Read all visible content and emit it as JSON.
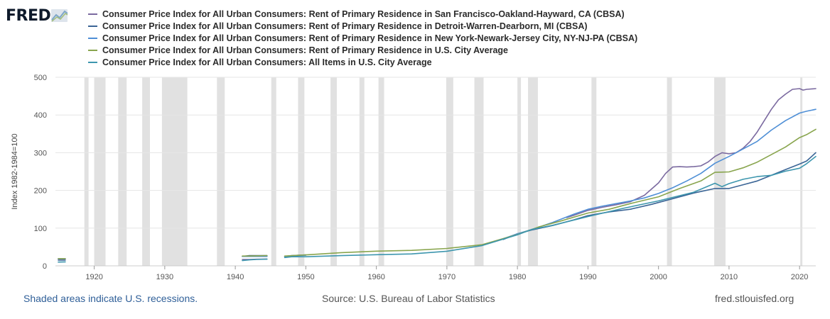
{
  "header": {
    "logo_text": "FRED",
    "logo_icon": "trend-line-icon"
  },
  "footer": {
    "note": "Shaded areas indicate U.S. recessions.",
    "source": "Source: U.S. Bureau of Labor Statistics",
    "url": "fred.stlouisfed.org"
  },
  "colors": {
    "recession": "#e1e1e1",
    "grid": "#e6e6e6"
  },
  "chart_data": {
    "type": "line",
    "title": "",
    "xlabel": "",
    "ylabel": "Index 1982-1984=100",
    "xlim": [
      1914.5,
      2022.3
    ],
    "ylim": [
      0,
      500
    ],
    "x_ticks": [
      1920,
      1930,
      1940,
      1950,
      1960,
      1970,
      1980,
      1990,
      2000,
      2010,
      2020
    ],
    "y_ticks": [
      0,
      100,
      200,
      300,
      400,
      500
    ],
    "grid": "horizontal",
    "legend": "top-left",
    "recessions": [
      [
        1918.6,
        1919.2
      ],
      [
        1920.0,
        1921.6
      ],
      [
        1923.4,
        1924.6
      ],
      [
        1926.8,
        1927.9
      ],
      [
        1929.6,
        1933.2
      ],
      [
        1937.4,
        1938.5
      ],
      [
        1945.1,
        1945.8
      ],
      [
        1948.9,
        1949.8
      ],
      [
        1953.5,
        1954.4
      ],
      [
        1957.6,
        1958.3
      ],
      [
        1960.3,
        1961.1
      ],
      [
        1969.9,
        1970.9
      ],
      [
        1973.9,
        1975.2
      ],
      [
        1980.0,
        1980.5
      ],
      [
        1981.5,
        1982.9
      ],
      [
        1990.5,
        1991.2
      ],
      [
        2001.2,
        2001.9
      ],
      [
        2007.9,
        2009.5
      ],
      [
        2020.1,
        2020.4
      ]
    ],
    "series": [
      {
        "name": "Consumer Price Index for All Urban Consumers: Rent of Primary Residence in San Francisco-Oakland-Hayward, CA (CBSA)",
        "color": "#7b6aa0",
        "segments": [
          [
            [
              1914.9,
              18
            ],
            [
              1915.9,
              18
            ]
          ],
          [
            [
              1941,
              17
            ],
            [
              1942,
              17
            ],
            [
              1943,
              17.5
            ],
            [
              1944.5,
              18
            ]
          ],
          [
            [
              1987,
              128
            ],
            [
              1988,
              134
            ],
            [
              1990,
              147
            ],
            [
              1992,
              155
            ],
            [
              1994,
              162
            ],
            [
              1996,
              170
            ],
            [
              1998,
              187
            ],
            [
              2000,
              220
            ],
            [
              2001,
              245
            ],
            [
              2002,
              262
            ],
            [
              2003,
              263
            ],
            [
              2004,
              262
            ],
            [
              2005,
              263
            ],
            [
              2006,
              265
            ],
            [
              2007,
              275
            ],
            [
              2008,
              290
            ],
            [
              2009,
              300
            ],
            [
              2010,
              297
            ],
            [
              2011,
              300
            ],
            [
              2012,
              312
            ],
            [
              2013,
              330
            ],
            [
              2014,
              355
            ],
            [
              2015,
              385
            ],
            [
              2016,
              415
            ],
            [
              2017,
              440
            ],
            [
              2018,
              455
            ],
            [
              2019,
              468
            ],
            [
              2020,
              470
            ],
            [
              2020.5,
              466
            ],
            [
              2021,
              468
            ],
            [
              2022.3,
              470
            ]
          ]
        ]
      },
      {
        "name": "Consumer Price Index for All Urban Consumers: Rent of Primary Residence in Detroit-Warren-Dearborn, MI (CBSA)",
        "color": "#3b6596",
        "segments": [
          [
            [
              1914.9,
              15
            ],
            [
              1915.9,
              15
            ]
          ],
          [
            [
              1941,
              25
            ],
            [
              1942,
              27
            ],
            [
              1943,
              27
            ],
            [
              1944.5,
              27
            ]
          ],
          [
            [
              1947,
              25
            ],
            [
              1948,
              27
            ],
            [
              1949,
              28
            ],
            [
              1950,
              29
            ]
          ],
          [
            [
              1978,
              70
            ],
            [
              1980,
              85
            ],
            [
              1982,
              95
            ],
            [
              1985,
              107
            ],
            [
              1988,
              122
            ],
            [
              1990,
              133
            ],
            [
              1993,
              143
            ],
            [
              1996,
              150
            ],
            [
              1999,
              163
            ],
            [
              2002,
              178
            ],
            [
              2005,
              193
            ],
            [
              2008,
              205
            ],
            [
              2010,
              205
            ],
            [
              2012,
              215
            ],
            [
              2014,
              225
            ],
            [
              2016,
              240
            ],
            [
              2018,
              255
            ],
            [
              2020,
              270
            ],
            [
              2021,
              278
            ],
            [
              2022.3,
              300
            ]
          ]
        ]
      },
      {
        "name": "Consumer Price Index for All Urban Consumers: Rent of Primary Residence in New York-Newark-Jersey City, NY-NJ-PA (CBSA)",
        "color": "#4f8fd6",
        "segments": [
          [
            [
              1914.9,
              19
            ],
            [
              1915.9,
              19
            ]
          ],
          [
            [
              1941,
              25
            ],
            [
              1942,
              25
            ],
            [
              1943,
              25
            ],
            [
              1944.5,
              25
            ]
          ],
          [
            [
              1947,
              24
            ],
            [
              1949,
              27
            ],
            [
              1950,
              28
            ]
          ],
          [
            [
              1978,
              72
            ],
            [
              1980,
              85
            ],
            [
              1982,
              96
            ],
            [
              1985,
              115
            ],
            [
              1988,
              137
            ],
            [
              1990,
              150
            ],
            [
              1992,
              158
            ],
            [
              1994,
              165
            ],
            [
              1996,
              172
            ],
            [
              1998,
              180
            ],
            [
              2000,
              192
            ],
            [
              2002,
              207
            ],
            [
              2004,
              225
            ],
            [
              2006,
              245
            ],
            [
              2008,
              272
            ],
            [
              2010,
              290
            ],
            [
              2012,
              310
            ],
            [
              2014,
              330
            ],
            [
              2016,
              360
            ],
            [
              2018,
              385
            ],
            [
              2020,
              405
            ],
            [
              2021,
              410
            ],
            [
              2022.3,
              415
            ]
          ]
        ]
      },
      {
        "name": "Consumer Price Index for All Urban Consumers: Rent of Primary Residence in U.S. City Average",
        "color": "#89a54e",
        "segments": [
          [
            [
              1914.9,
              19
            ],
            [
              1915.9,
              19
            ]
          ],
          [
            [
              1941,
              26
            ],
            [
              1942,
              26
            ],
            [
              1943,
              26.5
            ],
            [
              1944.5,
              27
            ]
          ],
          [
            [
              1947,
              26
            ],
            [
              1950,
              29
            ],
            [
              1955,
              35
            ],
            [
              1960,
              39
            ],
            [
              1965,
              41
            ],
            [
              1970,
              46
            ],
            [
              1975,
              56
            ],
            [
              1980,
              83
            ],
            [
              1983,
              103
            ],
            [
              1986,
              118
            ],
            [
              1990,
              140
            ],
            [
              1993,
              150
            ],
            [
              1996,
              165
            ],
            [
              2000,
              183
            ],
            [
              2003,
              205
            ],
            [
              2006,
              225
            ],
            [
              2008,
              248
            ],
            [
              2010,
              249
            ],
            [
              2012,
              260
            ],
            [
              2014,
              275
            ],
            [
              2016,
              295
            ],
            [
              2018,
              315
            ],
            [
              2020,
              340
            ],
            [
              2021,
              348
            ],
            [
              2022.3,
              362
            ]
          ]
        ]
      },
      {
        "name": "Consumer Price Index for All Urban Consumers: All Items in U.S. City Average",
        "color": "#3d96ae",
        "segments": [
          [
            [
              1914.9,
              10
            ],
            [
              1915.9,
              10.5
            ]
          ],
          [
            [
              1941,
              14
            ],
            [
              1942,
              15.7
            ],
            [
              1943,
              16.9
            ],
            [
              1944.5,
              17.6
            ]
          ],
          [
            [
              1947,
              22
            ],
            [
              1948,
              24
            ],
            [
              1950,
              24
            ],
            [
              1955,
              27
            ],
            [
              1960,
              29.6
            ],
            [
              1965,
              31.5
            ],
            [
              1970,
              38.8
            ],
            [
              1975,
              53.8
            ],
            [
              1980,
              82.4
            ],
            [
              1982,
              96.5
            ],
            [
              1985,
              107.6
            ],
            [
              1990,
              130.7
            ],
            [
              1995,
              152.4
            ],
            [
              2000,
              172.2
            ],
            [
              2005,
              195.3
            ],
            [
              2008,
              219
            ],
            [
              2009,
              210
            ],
            [
              2010,
              218
            ],
            [
              2012,
              229.6
            ],
            [
              2014,
              236.7
            ],
            [
              2016,
              240
            ],
            [
              2018,
              251
            ],
            [
              2020,
              258.8
            ],
            [
              2021,
              270.9
            ],
            [
              2022.3,
              290
            ]
          ]
        ]
      }
    ]
  }
}
